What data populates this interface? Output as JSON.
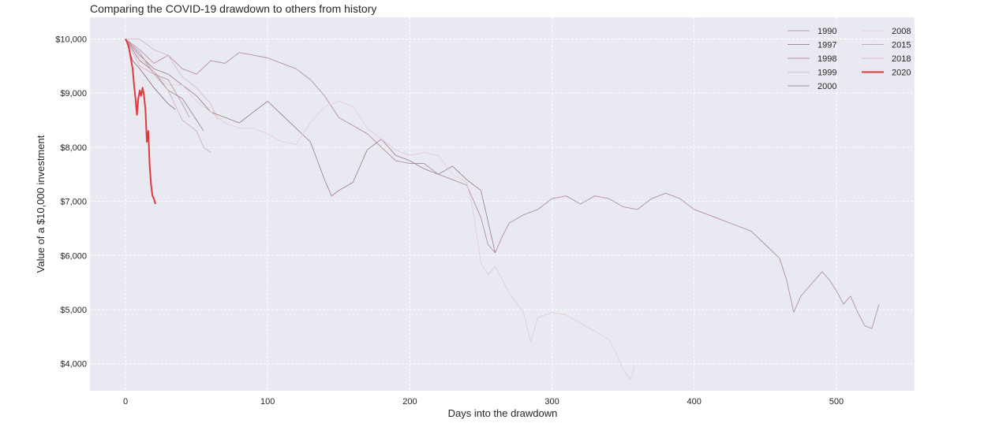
{
  "chart_data": {
    "type": "line",
    "title": "Comparing the COVID-19 drawdown to others from history",
    "xlabel": "Days into the drawdown",
    "ylabel": "Value of a $10,000 investment",
    "xlim": [
      -25,
      555
    ],
    "ylim": [
      3500,
      10400
    ],
    "x_ticks": [
      0,
      100,
      200,
      300,
      400,
      500
    ],
    "y_ticks": [
      4000,
      5000,
      6000,
      7000,
      8000,
      9000,
      10000
    ],
    "y_tick_labels": [
      "$4,000",
      "$5,000",
      "$6,000",
      "$7,000",
      "$8,000",
      "$9,000",
      "$10,000"
    ],
    "grid": true,
    "legend_position": "top-right",
    "legend_columns": 2,
    "series": [
      {
        "name": "1990",
        "color": "#a07f8c",
        "width": 0.8,
        "points": [
          [
            0,
            10000
          ],
          [
            10,
            9600
          ],
          [
            20,
            9400
          ],
          [
            30,
            9050
          ],
          [
            40,
            8900
          ],
          [
            50,
            8500
          ],
          [
            55,
            8300
          ]
        ]
      },
      {
        "name": "1997",
        "color": "#8e6a7a",
        "width": 0.8,
        "points": [
          [
            0,
            10000
          ],
          [
            5,
            9600
          ],
          [
            10,
            9450
          ],
          [
            20,
            9100
          ],
          [
            30,
            8800
          ],
          [
            35,
            8700
          ]
        ]
      },
      {
        "name": "1998",
        "color": "#b68fa0",
        "width": 0.9,
        "points": [
          [
            0,
            10000
          ],
          [
            10,
            9800
          ],
          [
            20,
            9550
          ],
          [
            30,
            9700
          ],
          [
            40,
            9450
          ],
          [
            50,
            9350
          ],
          [
            60,
            9600
          ],
          [
            70,
            9550
          ],
          [
            80,
            9750
          ],
          [
            90,
            9700
          ],
          [
            100,
            9650
          ],
          [
            110,
            9550
          ],
          [
            120,
            9450
          ],
          [
            130,
            9250
          ],
          [
            140,
            8950
          ],
          [
            150,
            8550
          ],
          [
            160,
            8400
          ],
          [
            170,
            8250
          ],
          [
            180,
            8000
          ],
          [
            190,
            7750
          ],
          [
            200,
            7700
          ],
          [
            210,
            7700
          ],
          [
            220,
            7500
          ],
          [
            230,
            7400
          ],
          [
            240,
            7300
          ],
          [
            250,
            6700
          ],
          [
            255,
            6200
          ],
          [
            260,
            6050
          ],
          [
            265,
            6350
          ],
          [
            270,
            6600
          ],
          [
            280,
            6750
          ],
          [
            290,
            6850
          ],
          [
            300,
            7050
          ],
          [
            310,
            7100
          ],
          [
            320,
            6950
          ],
          [
            330,
            7100
          ],
          [
            340,
            7050
          ],
          [
            350,
            6900
          ],
          [
            360,
            6850
          ],
          [
            370,
            7050
          ],
          [
            380,
            7150
          ],
          [
            390,
            7050
          ],
          [
            400,
            6850
          ],
          [
            410,
            6750
          ],
          [
            420,
            6650
          ],
          [
            430,
            6550
          ],
          [
            440,
            6450
          ],
          [
            450,
            6200
          ],
          [
            460,
            5950
          ],
          [
            465,
            5550
          ],
          [
            470,
            4950
          ],
          [
            475,
            5250
          ],
          [
            480,
            5400
          ],
          [
            485,
            5550
          ],
          [
            490,
            5700
          ],
          [
            495,
            5550
          ],
          [
            500,
            5350
          ],
          [
            505,
            5100
          ],
          [
            510,
            5250
          ],
          [
            515,
            4950
          ],
          [
            520,
            4700
          ],
          [
            525,
            4650
          ],
          [
            530,
            5100
          ]
        ]
      },
      {
        "name": "1999",
        "color": "#d8b4c2",
        "width": 0.8,
        "points": [
          [
            0,
            10000
          ],
          [
            10,
            10000
          ],
          [
            20,
            9800
          ],
          [
            30,
            9700
          ],
          [
            40,
            9300
          ],
          [
            50,
            9100
          ],
          [
            60,
            8800
          ],
          [
            65,
            8500
          ]
        ]
      },
      {
        "name": "2000",
        "color": "#9c7987",
        "width": 0.8,
        "points": [
          [
            0,
            10000
          ],
          [
            10,
            9700
          ],
          [
            20,
            9450
          ],
          [
            30,
            9350
          ],
          [
            40,
            9150
          ],
          [
            50,
            8950
          ],
          [
            60,
            8650
          ],
          [
            70,
            8550
          ],
          [
            80,
            8450
          ],
          [
            90,
            8650
          ],
          [
            100,
            8850
          ],
          [
            110,
            8600
          ],
          [
            120,
            8350
          ],
          [
            130,
            8100
          ],
          [
            140,
            7400
          ],
          [
            145,
            7100
          ],
          [
            150,
            7200
          ],
          [
            160,
            7350
          ],
          [
            170,
            7950
          ],
          [
            180,
            8150
          ],
          [
            190,
            7850
          ],
          [
            200,
            7750
          ],
          [
            210,
            7600
          ],
          [
            220,
            7500
          ],
          [
            230,
            7650
          ],
          [
            240,
            7400
          ],
          [
            250,
            7200
          ],
          [
            260,
            6050
          ]
        ]
      },
      {
        "name": "2008",
        "color": "#e6c8d2",
        "width": 0.8,
        "points": [
          [
            0,
            10000
          ],
          [
            10,
            9650
          ],
          [
            20,
            9400
          ],
          [
            30,
            9150
          ],
          [
            40,
            9150
          ],
          [
            50,
            8850
          ],
          [
            60,
            8650
          ],
          [
            70,
            8450
          ],
          [
            80,
            8350
          ],
          [
            90,
            8350
          ],
          [
            100,
            8250
          ],
          [
            110,
            8100
          ],
          [
            120,
            8050
          ],
          [
            130,
            8450
          ],
          [
            140,
            8750
          ],
          [
            150,
            8850
          ],
          [
            160,
            8750
          ],
          [
            170,
            8350
          ],
          [
            180,
            8150
          ],
          [
            190,
            7950
          ],
          [
            200,
            7850
          ],
          [
            210,
            7900
          ],
          [
            220,
            7850
          ],
          [
            230,
            7500
          ],
          [
            240,
            7350
          ],
          [
            245,
            6750
          ],
          [
            250,
            5850
          ],
          [
            255,
            5650
          ],
          [
            260,
            5800
          ],
          [
            270,
            5300
          ],
          [
            280,
            4950
          ],
          [
            285,
            4400
          ],
          [
            290,
            4850
          ],
          [
            300,
            4950
          ],
          [
            310,
            4900
          ],
          [
            320,
            4750
          ],
          [
            330,
            4600
          ],
          [
            340,
            4450
          ],
          [
            345,
            4200
          ],
          [
            350,
            3900
          ],
          [
            355,
            3700
          ],
          [
            358,
            3950
          ]
        ]
      },
      {
        "name": "2015",
        "color": "#b993a3",
        "width": 0.8,
        "points": [
          [
            0,
            10000
          ],
          [
            10,
            9750
          ],
          [
            20,
            9350
          ],
          [
            30,
            9250
          ],
          [
            40,
            8800
          ],
          [
            45,
            8550
          ]
        ]
      },
      {
        "name": "2018",
        "color": "#d7a8b6",
        "width": 0.8,
        "points": [
          [
            0,
            10000
          ],
          [
            10,
            9500
          ],
          [
            20,
            9350
          ],
          [
            30,
            9050
          ],
          [
            40,
            8500
          ],
          [
            50,
            8300
          ],
          [
            55,
            8000
          ],
          [
            60,
            7900
          ]
        ]
      },
      {
        "name": "2020",
        "color": "#e3393e",
        "width": 2.0,
        "points": [
          [
            0,
            10000
          ],
          [
            2,
            9900
          ],
          [
            4,
            9600
          ],
          [
            5,
            9450
          ],
          [
            6,
            9150
          ],
          [
            7,
            8900
          ],
          [
            8,
            8600
          ],
          [
            9,
            8900
          ],
          [
            10,
            9050
          ],
          [
            11,
            8950
          ],
          [
            12,
            9100
          ],
          [
            13,
            8950
          ],
          [
            14,
            8700
          ],
          [
            15,
            8100
          ],
          [
            16,
            8300
          ],
          [
            17,
            7650
          ],
          [
            18,
            7300
          ],
          [
            19,
            7100
          ],
          [
            20,
            7050
          ],
          [
            21,
            6950
          ]
        ]
      }
    ]
  }
}
